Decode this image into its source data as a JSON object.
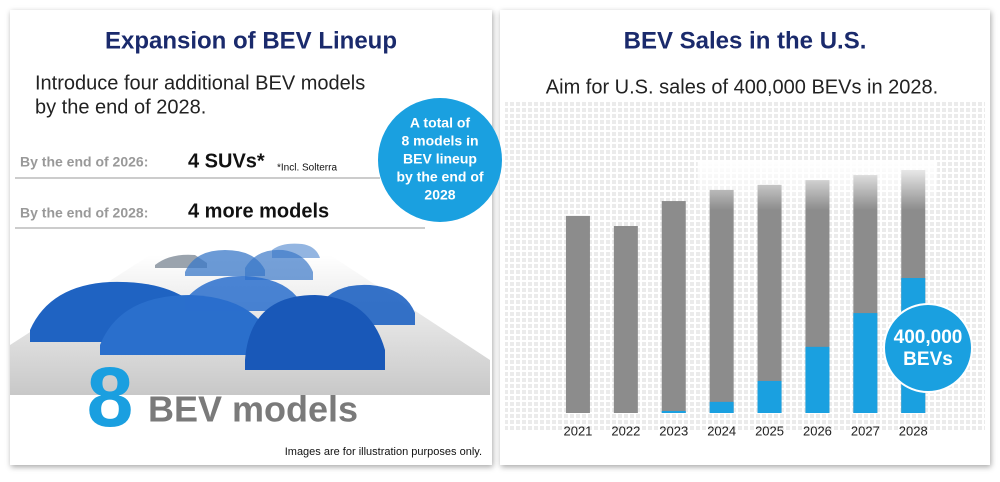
{
  "left_panel": {
    "title": "Expansion of BEV Lineup",
    "intro": [
      "Introduce four additional BEV models",
      "by the end of 2028."
    ],
    "rows": [
      {
        "label": "By the end of  2026:",
        "value": "4 SUVs*",
        "note": "*Incl. Solterra"
      },
      {
        "label": "By the end of  2028:",
        "value": "4 more models"
      }
    ],
    "badge": [
      "A total of",
      "8 models in",
      "BEV lineup",
      "by the end of",
      "2028"
    ],
    "big_number": "8",
    "big_text": "BEV models",
    "disclaimer": "Images are for illustration purposes only."
  },
  "chart_data": {
    "type": "bar",
    "title": "BEV Sales in the U.S.",
    "subtitle": "Aim for U.S. sales of 400,000 BEVs in 2028.",
    "categories": [
      "2021",
      "2022",
      "2023",
      "2024",
      "2025",
      "2026",
      "2027",
      "2028"
    ],
    "series": [
      {
        "color": "#8c8c8c",
        "values": [
          584000,
          554000,
          628000,
          661000,
          676000,
          690000,
          705000,
          720000
        ]
      },
      {
        "color": "#1aa0e0",
        "values": [
          0,
          0,
          6000,
          33000,
          95000,
          196000,
          296000,
          400000
        ]
      }
    ],
    "ylim": [
      0,
      800000
    ],
    "annotation": [
      "400,000",
      "BEVs"
    ]
  }
}
